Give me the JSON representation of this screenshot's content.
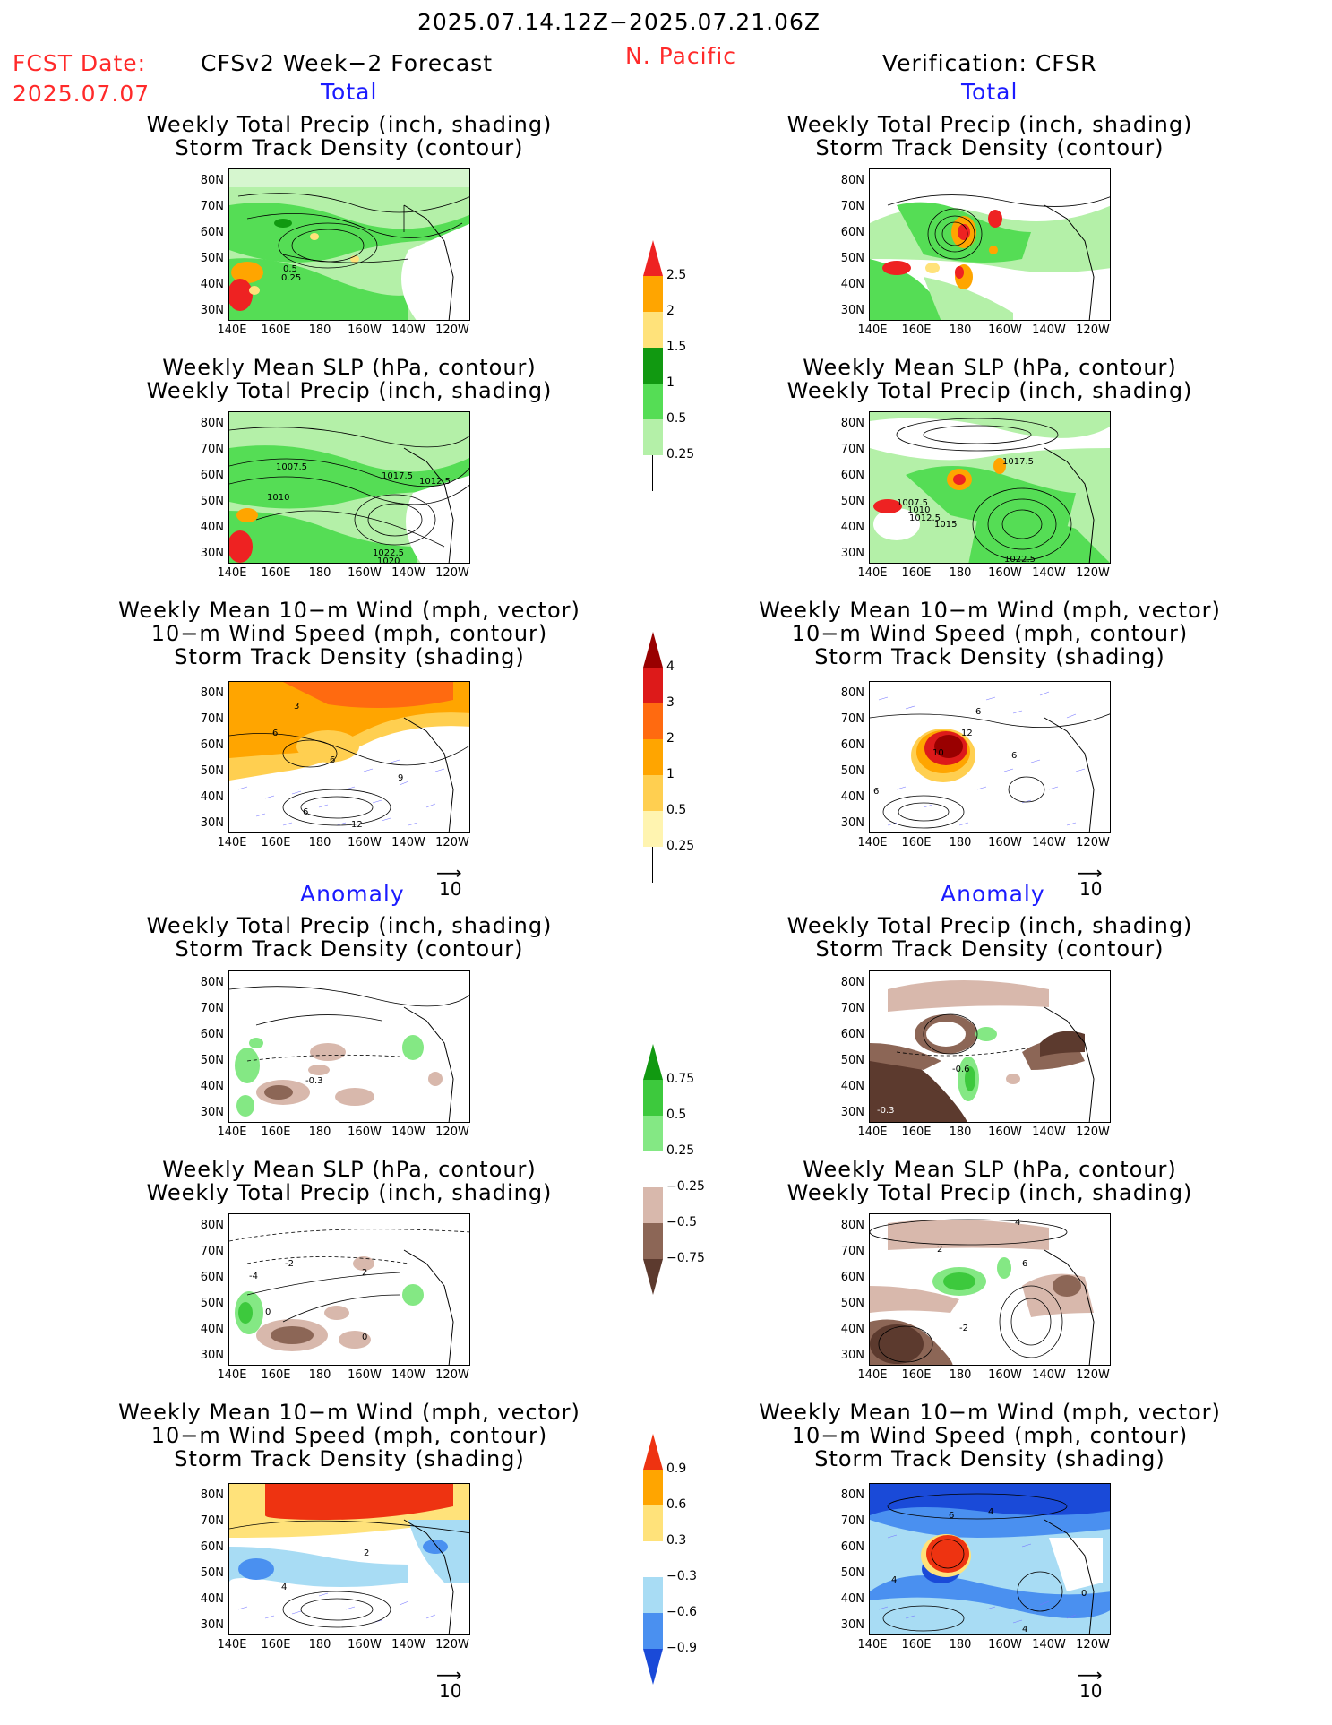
{
  "header": {
    "date_range": "2025.07.14.12Z−2025.07.21.06Z",
    "fcst_label": "FCST Date:",
    "fcst_date": "2025.07.07",
    "region": "N. Pacific",
    "left_title": "CFSv2 Week−2 Forecast",
    "right_title": "Verification: CFSR"
  },
  "section_labels": {
    "total": "Total",
    "anomaly": "Anomaly"
  },
  "panel_titles": {
    "precip_storm": [
      "Weekly Total Precip (inch, shading)",
      "Storm Track Density (contour)"
    ],
    "slp_precip": [
      "Weekly Mean SLP (hPa, contour)",
      "Weekly Total Precip (inch, shading)"
    ],
    "wind_storm": [
      "Weekly Mean 10−m Wind (mph, vector)",
      "10−m Wind Speed (mph, contour)",
      "Storm Track Density (shading)"
    ]
  },
  "axes": {
    "lat_ticks": [
      "80N",
      "70N",
      "60N",
      "50N",
      "40N",
      "30N"
    ],
    "lon_ticks": [
      "140E",
      "160E",
      "180",
      "160W",
      "140W",
      "120W"
    ]
  },
  "vector_ref": "10",
  "contour_labels": {
    "fc_total_precip": [
      "0.5",
      "0.25"
    ],
    "fc_total_slp": [
      "1007.5",
      "1010",
      "1017.5",
      "1012.5",
      "1022.5",
      "1020"
    ],
    "fc_total_wind": [
      "3",
      "6",
      "6",
      "9",
      "6",
      "12"
    ],
    "ver_total_slp": [
      "1017.5",
      "1007.5",
      "1010",
      "1012.5",
      "1015",
      "1022.5"
    ],
    "ver_total_wind": [
      "12",
      "10",
      "6",
      "6",
      "6"
    ],
    "fc_anom_precip": [
      "-0.3"
    ],
    "fc_anom_slp": [
      "-4",
      "0",
      "-2",
      "2",
      "0"
    ],
    "ver_anom_precip": [
      "-0.6",
      "-0.3"
    ],
    "ver_anom_slp": [
      "4",
      "2",
      "6",
      "-2"
    ],
    "fc_anom_wind": [
      "2",
      "4"
    ],
    "ver_anom_wind": [
      "6",
      "4",
      "4",
      "4",
      "0"
    ]
  },
  "colorbars": {
    "precip_total": [
      "2.5",
      "2",
      "1.5",
      "1",
      "0.5",
      "0.25"
    ],
    "storm_total": [
      "4",
      "3",
      "2",
      "1",
      "0.5",
      "0.25"
    ],
    "precip_anom": [
      "0.75",
      "0.5",
      "0.25",
      "−0.25",
      "−0.5",
      "−0.75"
    ],
    "storm_anom": [
      "0.9",
      "0.6",
      "0.3",
      "−0.3",
      "−0.6",
      "−0.9"
    ]
  },
  "colors": {
    "precip_total": [
      "#ffffff",
      "#b4f0a8",
      "#55dd55",
      "#119911",
      "#ffe27a",
      "#ffa500",
      "#ee2222"
    ],
    "storm_total": [
      "#ffffff",
      "#fff4b0",
      "#ffcf50",
      "#ffa500",
      "#ff6a10",
      "#dd1a1a",
      "#990000"
    ],
    "precip_anom": [
      "#5c3a2e",
      "#8c6656",
      "#d8b8ac",
      "#ffffff",
      "#84e884",
      "#3dc93d",
      "#119911"
    ],
    "storm_anom": [
      "#1a4ad8",
      "#4a90f0",
      "#a8dcf4",
      "#ffffff",
      "#ffe27a",
      "#ffa500",
      "#ee3311"
    ],
    "red_text": "#ff2a2a",
    "blue_text": "#1b1bff"
  }
}
